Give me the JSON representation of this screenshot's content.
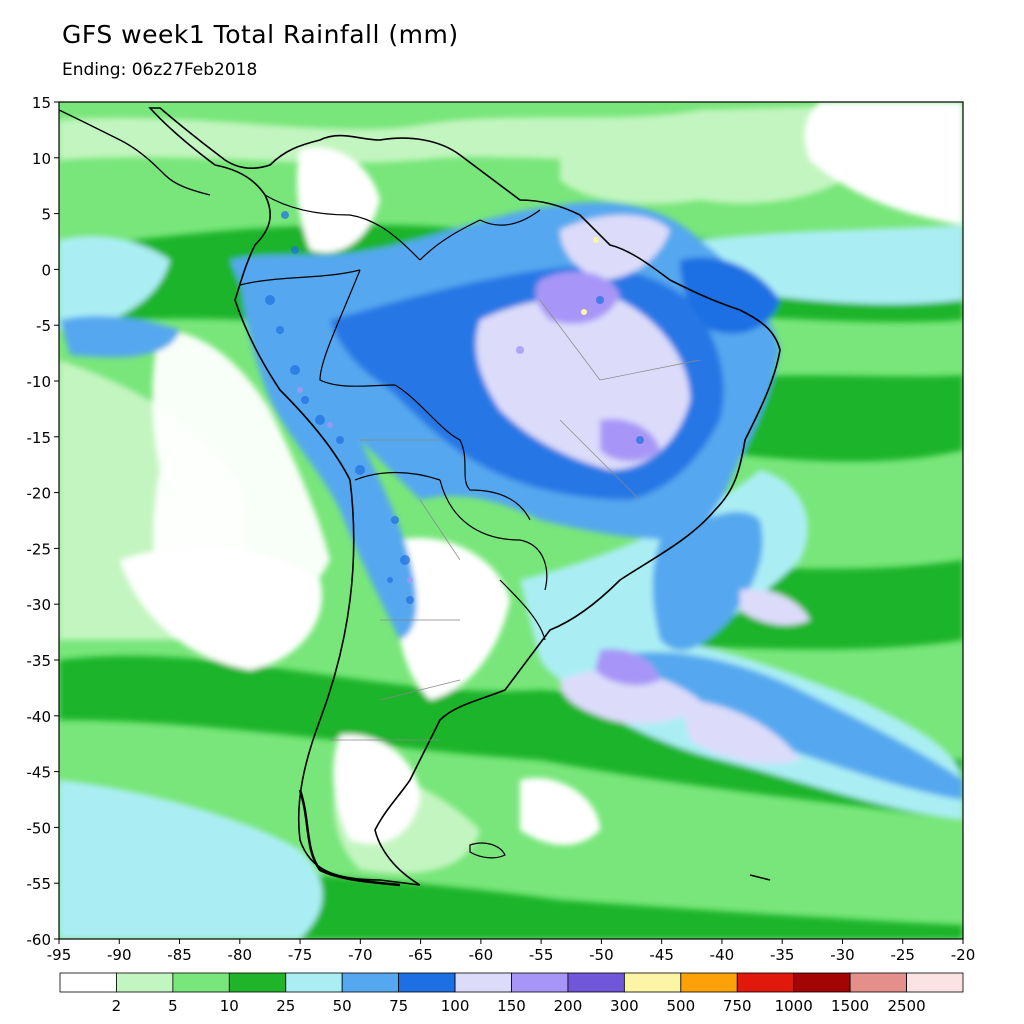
{
  "title": "GFS week1 Total Rainfall (mm)",
  "subtitle": "Ending: 06z27Feb2018",
  "map": {
    "lat_range": [
      -60,
      15
    ],
    "lon_range": [
      -95,
      -20
    ],
    "y_ticks": [
      {
        "v": 15,
        "label": "15"
      },
      {
        "v": 10,
        "label": "10"
      },
      {
        "v": 5,
        "label": "5"
      },
      {
        "v": 0,
        "label": "0"
      },
      {
        "v": -5,
        "label": "-5"
      },
      {
        "v": -10,
        "label": "-10"
      },
      {
        "v": -15,
        "label": "-15"
      },
      {
        "v": -20,
        "label": "-20"
      },
      {
        "v": -25,
        "label": "-25"
      },
      {
        "v": -30,
        "label": "-30"
      },
      {
        "v": -35,
        "label": "-35"
      },
      {
        "v": -40,
        "label": "-40"
      },
      {
        "v": -45,
        "label": "-45"
      },
      {
        "v": -50,
        "label": "-50"
      },
      {
        "v": -55,
        "label": "-55"
      },
      {
        "v": -60,
        "label": "-60"
      }
    ],
    "x_ticks": [
      {
        "v": -95,
        "label": "-95"
      },
      {
        "v": -90,
        "label": "-90"
      },
      {
        "v": -85,
        "label": "-85"
      },
      {
        "v": -80,
        "label": "-80"
      },
      {
        "v": -75,
        "label": "-75"
      },
      {
        "v": -70,
        "label": "-70"
      },
      {
        "v": -65,
        "label": "-65"
      },
      {
        "v": -60,
        "label": "-60"
      },
      {
        "v": -55,
        "label": "-55"
      },
      {
        "v": -50,
        "label": "-50"
      },
      {
        "v": -45,
        "label": "-45"
      },
      {
        "v": -40,
        "label": "-40"
      },
      {
        "v": -35,
        "label": "-35"
      },
      {
        "v": -30,
        "label": "-30"
      },
      {
        "v": -25,
        "label": "-25"
      },
      {
        "v": -20,
        "label": "-20"
      }
    ]
  },
  "colorbar": {
    "colors": [
      "#ffffff",
      "#c3f5c0",
      "#78e67a",
      "#1fb42a",
      "#aaeef4",
      "#55a8ef",
      "#1e6fe3",
      "#dcdcfa",
      "#a796f7",
      "#7056d8",
      "#fdf5a6",
      "#fda108",
      "#e1180c",
      "#a30404",
      "#e48f8a",
      "#fbe3e3"
    ],
    "labels": [
      "2",
      "5",
      "10",
      "25",
      "50",
      "75",
      "100",
      "150",
      "200",
      "300",
      "500",
      "750",
      "1000",
      "1500",
      "2500"
    ]
  }
}
